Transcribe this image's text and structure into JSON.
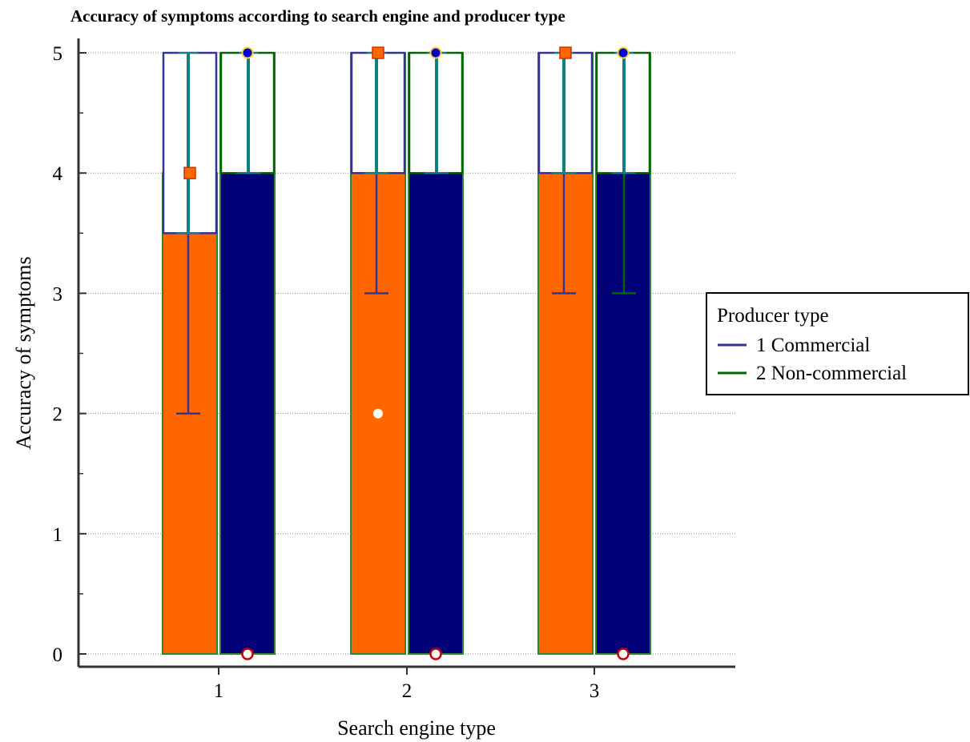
{
  "chart_data": {
    "type": "bar",
    "title": "Accuracy of symptoms according to search engine and producer type",
    "xlabel": "Search engine type",
    "ylabel": "Accuracy of  symptoms",
    "categories": [
      "1",
      "2",
      "3"
    ],
    "yticks": [
      "0",
      "1",
      "2",
      "3",
      "4",
      "5"
    ],
    "ylim": [
      0,
      5
    ],
    "grid": true,
    "legend": {
      "title": "Producer type",
      "placement": "right",
      "entries": [
        "1 Commercial",
        "2 Non-commercial"
      ]
    },
    "series": [
      {
        "name": "1 Commercial",
        "bar_color": "#ff6600",
        "line_color": "#333399",
        "values": [
          4,
          5,
          5
        ],
        "box": [
          {
            "q1": 3.5,
            "q3": 5,
            "whisker_low": 2,
            "whisker_high": 5,
            "marker": 4,
            "outliers": []
          },
          {
            "q1": 4,
            "q3": 5,
            "whisker_low": 3,
            "whisker_high": 5,
            "marker": 5,
            "outliers": [
              2
            ]
          },
          {
            "q1": 4,
            "q3": 5,
            "whisker_low": 3,
            "whisker_high": 5,
            "marker": 5,
            "outliers": []
          }
        ]
      },
      {
        "name": "2 Non-commercial",
        "bar_color": "#000077",
        "line_color": "#006600",
        "values": [
          5,
          5,
          5
        ],
        "box": [
          {
            "q1": 4,
            "q3": 5,
            "whisker_low": 4,
            "whisker_high": 5,
            "marker": 5,
            "outliers": [
              0
            ]
          },
          {
            "q1": 4,
            "q3": 5,
            "whisker_low": 4,
            "whisker_high": 5,
            "marker": 5,
            "outliers": [
              0
            ]
          },
          {
            "q1": 4,
            "q3": 5,
            "whisker_low": 3,
            "whisker_high": 5,
            "marker": 5,
            "outliers": [
              0
            ]
          }
        ]
      }
    ]
  }
}
